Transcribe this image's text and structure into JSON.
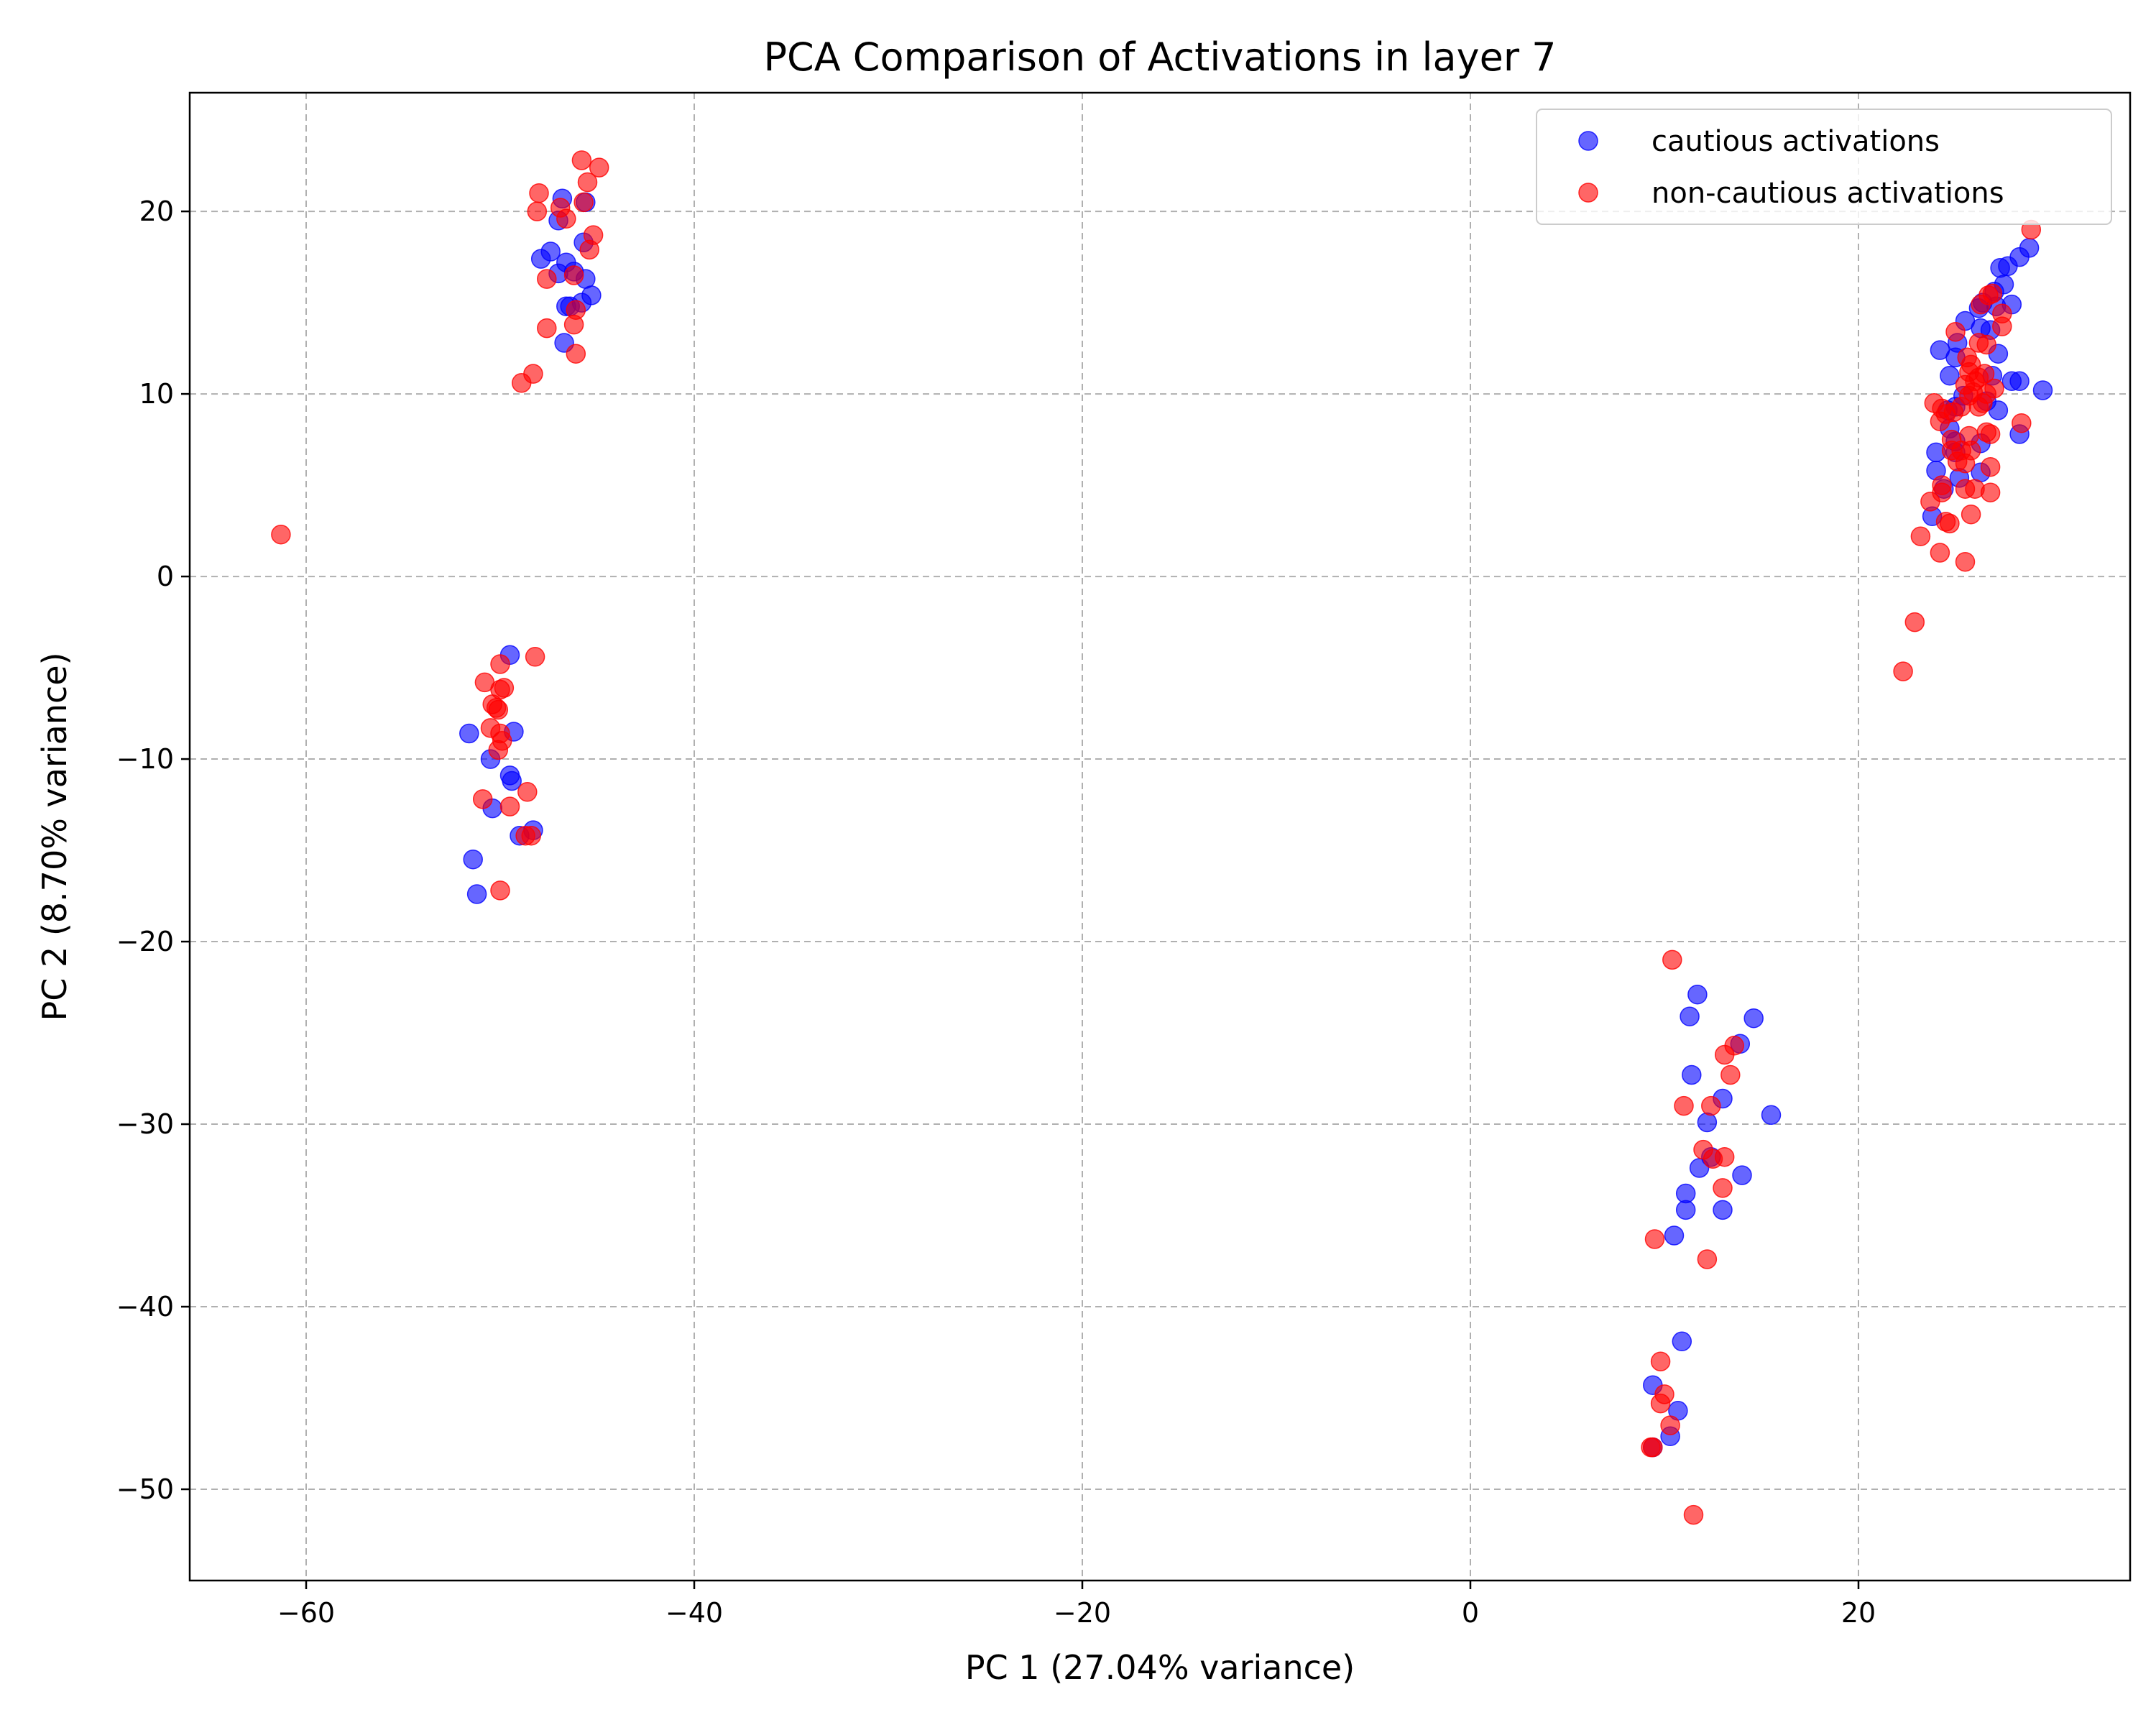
{
  "chart_data": {
    "type": "scatter",
    "title": "PCA Comparison of Activations in layer 7",
    "xlabel": "PC 1 (27.04% variance)",
    "ylabel": "PC 2 (8.70% variance)",
    "xlim": [
      -66,
      34
    ],
    "ylim": [
      -55,
      26.5
    ],
    "xticks": [
      -60,
      -40,
      -20,
      0,
      20
    ],
    "yticks": [
      -50,
      -40,
      -30,
      -20,
      -10,
      0,
      10,
      20
    ],
    "xtick_labels": [
      "−60",
      "−40",
      "−20",
      "0",
      "20"
    ],
    "ytick_labels": [
      "−50",
      "−40",
      "−30",
      "−20",
      "−10",
      "0",
      "10",
      "20"
    ],
    "grid": true,
    "legend_position": "top-right",
    "series": [
      {
        "name": "cautious activations",
        "color": "#0000ff",
        "points": [
          [
            -46.8,
            20.7
          ],
          [
            -45.6,
            20.5
          ],
          [
            -47.0,
            19.5
          ],
          [
            -47.4,
            17.8
          ],
          [
            -47.9,
            17.4
          ],
          [
            -46.6,
            17.2
          ],
          [
            -45.6,
            16.3
          ],
          [
            -45.7,
            18.3
          ],
          [
            -46.2,
            16.7
          ],
          [
            -47.0,
            16.6
          ],
          [
            -45.3,
            15.4
          ],
          [
            -45.8,
            15.0
          ],
          [
            -46.6,
            14.8
          ],
          [
            -46.4,
            14.8
          ],
          [
            -46.7,
            12.8
          ],
          [
            -49.5,
            -4.3
          ],
          [
            -49.3,
            -8.5
          ],
          [
            -51.6,
            -8.6
          ],
          [
            -50.5,
            -10.0
          ],
          [
            -49.5,
            -10.9
          ],
          [
            -49.4,
            -11.2
          ],
          [
            -50.4,
            -12.7
          ],
          [
            -48.3,
            -13.9
          ],
          [
            -49.0,
            -14.2
          ],
          [
            -51.4,
            -15.5
          ],
          [
            -51.2,
            -17.4
          ],
          [
            11.7,
            -22.9
          ],
          [
            11.3,
            -24.1
          ],
          [
            14.6,
            -24.2
          ],
          [
            13.9,
            -25.6
          ],
          [
            11.4,
            -27.3
          ],
          [
            13.0,
            -28.6
          ],
          [
            15.5,
            -29.5
          ],
          [
            12.2,
            -29.9
          ],
          [
            12.4,
            -31.8
          ],
          [
            11.8,
            -32.4
          ],
          [
            14.0,
            -32.8
          ],
          [
            11.1,
            -33.8
          ],
          [
            11.1,
            -34.7
          ],
          [
            13.0,
            -34.7
          ],
          [
            10.5,
            -36.1
          ],
          [
            10.9,
            -41.9
          ],
          [
            9.4,
            -44.3
          ],
          [
            10.7,
            -45.7
          ],
          [
            10.3,
            -47.1
          ],
          [
            9.4,
            -47.7
          ],
          [
            28.8,
            18.0
          ],
          [
            28.3,
            17.5
          ],
          [
            27.7,
            17.0
          ],
          [
            27.3,
            16.9
          ],
          [
            27.5,
            16.0
          ],
          [
            27.0,
            15.6
          ],
          [
            26.4,
            15.0
          ],
          [
            27.9,
            14.9
          ],
          [
            27.1,
            14.8
          ],
          [
            26.2,
            14.7
          ],
          [
            25.5,
            14.0
          ],
          [
            26.3,
            13.6
          ],
          [
            25.1,
            12.8
          ],
          [
            26.8,
            13.5
          ],
          [
            24.2,
            12.4
          ],
          [
            25.0,
            12.0
          ],
          [
            27.2,
            12.2
          ],
          [
            26.9,
            11.0
          ],
          [
            27.9,
            10.7
          ],
          [
            28.3,
            10.7
          ],
          [
            29.5,
            10.2
          ],
          [
            24.7,
            11.0
          ],
          [
            25.4,
            9.9
          ],
          [
            24.6,
            9.1
          ],
          [
            25.0,
            9.3
          ],
          [
            24.7,
            8.1
          ],
          [
            25.0,
            7.4
          ],
          [
            27.2,
            9.1
          ],
          [
            26.6,
            9.6
          ],
          [
            28.3,
            7.8
          ],
          [
            24.0,
            6.8
          ],
          [
            25.0,
            6.8
          ],
          [
            24.0,
            5.8
          ],
          [
            26.3,
            7.3
          ],
          [
            25.2,
            5.4
          ],
          [
            26.3,
            5.7
          ],
          [
            24.4,
            4.8
          ],
          [
            23.8,
            3.3
          ]
        ]
      },
      {
        "name": "non-cautious activations",
        "color": "#ff0000",
        "points": [
          [
            -61.3,
            2.3
          ],
          [
            -45.8,
            22.8
          ],
          [
            -44.9,
            22.4
          ],
          [
            -45.5,
            21.6
          ],
          [
            -48.0,
            21.0
          ],
          [
            -45.7,
            20.5
          ],
          [
            -46.9,
            20.2
          ],
          [
            -48.1,
            20.0
          ],
          [
            -46.6,
            19.6
          ],
          [
            -45.2,
            18.7
          ],
          [
            -45.4,
            17.9
          ],
          [
            -46.2,
            16.5
          ],
          [
            -47.6,
            16.3
          ],
          [
            -46.1,
            14.6
          ],
          [
            -46.2,
            13.8
          ],
          [
            -47.6,
            13.6
          ],
          [
            -46.1,
            12.2
          ],
          [
            -48.3,
            11.1
          ],
          [
            -48.9,
            10.6
          ],
          [
            -48.2,
            -4.4
          ],
          [
            -50.0,
            -4.8
          ],
          [
            -50.8,
            -5.8
          ],
          [
            -49.8,
            -6.1
          ],
          [
            -50.0,
            -6.2
          ],
          [
            -50.4,
            -7.0
          ],
          [
            -50.1,
            -7.3
          ],
          [
            -50.2,
            -7.2
          ],
          [
            -50.5,
            -8.3
          ],
          [
            -50.0,
            -8.6
          ],
          [
            -49.9,
            -9.0
          ],
          [
            -50.1,
            -9.5
          ],
          [
            -48.6,
            -11.8
          ],
          [
            -50.9,
            -12.2
          ],
          [
            -49.5,
            -12.6
          ],
          [
            -48.7,
            -14.2
          ],
          [
            -48.4,
            -14.2
          ],
          [
            -50.0,
            -17.2
          ],
          [
            10.4,
            -21.0
          ],
          [
            13.6,
            -25.7
          ],
          [
            13.1,
            -26.2
          ],
          [
            13.4,
            -27.3
          ],
          [
            11.0,
            -29.0
          ],
          [
            12.4,
            -29.0
          ],
          [
            12.0,
            -31.4
          ],
          [
            13.1,
            -31.8
          ],
          [
            12.5,
            -31.9
          ],
          [
            13.0,
            -33.5
          ],
          [
            9.5,
            -36.3
          ],
          [
            12.2,
            -37.4
          ],
          [
            9.8,
            -43.0
          ],
          [
            10.0,
            -44.8
          ],
          [
            9.8,
            -45.3
          ],
          [
            10.3,
            -46.5
          ],
          [
            9.3,
            -47.7
          ],
          [
            9.4,
            -47.7
          ],
          [
            11.5,
            -51.4
          ],
          [
            28.9,
            19.0
          ],
          [
            26.7,
            15.4
          ],
          [
            26.9,
            15.5
          ],
          [
            26.3,
            14.9
          ],
          [
            27.4,
            14.4
          ],
          [
            27.4,
            13.7
          ],
          [
            25.0,
            13.4
          ],
          [
            26.2,
            12.8
          ],
          [
            26.6,
            12.7
          ],
          [
            25.6,
            12.0
          ],
          [
            25.7,
            11.2
          ],
          [
            25.8,
            11.6
          ],
          [
            26.5,
            11.1
          ],
          [
            26.2,
            10.9
          ],
          [
            25.5,
            10.5
          ],
          [
            26.0,
            10.7
          ],
          [
            25.9,
            10.1
          ],
          [
            26.6,
            10.0
          ],
          [
            27.0,
            10.3
          ],
          [
            25.7,
            9.9
          ],
          [
            26.4,
            9.5
          ],
          [
            23.9,
            9.5
          ],
          [
            24.3,
            9.2
          ],
          [
            24.9,
            9.0
          ],
          [
            24.5,
            8.9
          ],
          [
            25.3,
            9.3
          ],
          [
            26.2,
            9.3
          ],
          [
            24.2,
            8.5
          ],
          [
            28.4,
            8.4
          ],
          [
            26.6,
            7.9
          ],
          [
            25.7,
            7.7
          ],
          [
            26.8,
            7.8
          ],
          [
            24.8,
            7.5
          ],
          [
            25.3,
            6.9
          ],
          [
            24.8,
            6.9
          ],
          [
            25.8,
            6.9
          ],
          [
            25.1,
            6.3
          ],
          [
            25.5,
            6.2
          ],
          [
            26.8,
            6.0
          ],
          [
            24.3,
            5.0
          ],
          [
            25.5,
            4.8
          ],
          [
            26.0,
            4.8
          ],
          [
            24.3,
            4.6
          ],
          [
            26.8,
            4.6
          ],
          [
            23.7,
            4.1
          ],
          [
            25.8,
            3.4
          ],
          [
            24.5,
            3.0
          ],
          [
            24.7,
            2.9
          ],
          [
            23.2,
            2.2
          ],
          [
            24.2,
            1.3
          ],
          [
            25.5,
            0.8
          ],
          [
            22.9,
            -2.5
          ],
          [
            22.3,
            -5.2
          ]
        ]
      }
    ]
  }
}
